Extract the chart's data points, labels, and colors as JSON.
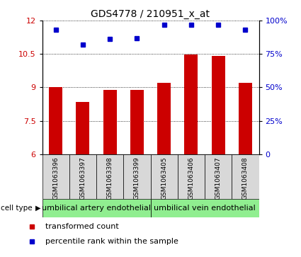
{
  "title": "GDS4778 / 210951_x_at",
  "samples": [
    "GSM1063396",
    "GSM1063397",
    "GSM1063398",
    "GSM1063399",
    "GSM1063405",
    "GSM1063406",
    "GSM1063407",
    "GSM1063408"
  ],
  "bar_values": [
    9.0,
    8.35,
    8.9,
    8.9,
    9.2,
    10.48,
    10.42,
    9.2
  ],
  "dot_values": [
    93,
    82,
    86,
    87,
    97,
    97,
    97,
    93
  ],
  "ylim_left": [
    6,
    12
  ],
  "ylim_right": [
    0,
    100
  ],
  "yticks_left": [
    6,
    7.5,
    9,
    10.5,
    12
  ],
  "yticks_right": [
    0,
    25,
    50,
    75,
    100
  ],
  "bar_color": "#cc0000",
  "dot_color": "#0000cc",
  "group1_label": "umbilical artery endothelial",
  "group2_label": "umbilical vein endothelial",
  "group1_count": 4,
  "group2_count": 4,
  "cell_type_label": "cell type",
  "legend_bar": "transformed count",
  "legend_dot": "percentile rank within the sample",
  "sample_bg_color": "#d8d8d8",
  "group_bg_color": "#90ee90",
  "title_fontsize": 10,
  "axis_tick_fontsize": 8,
  "sample_fontsize": 6.5,
  "group_fontsize": 8,
  "legend_fontsize": 8
}
